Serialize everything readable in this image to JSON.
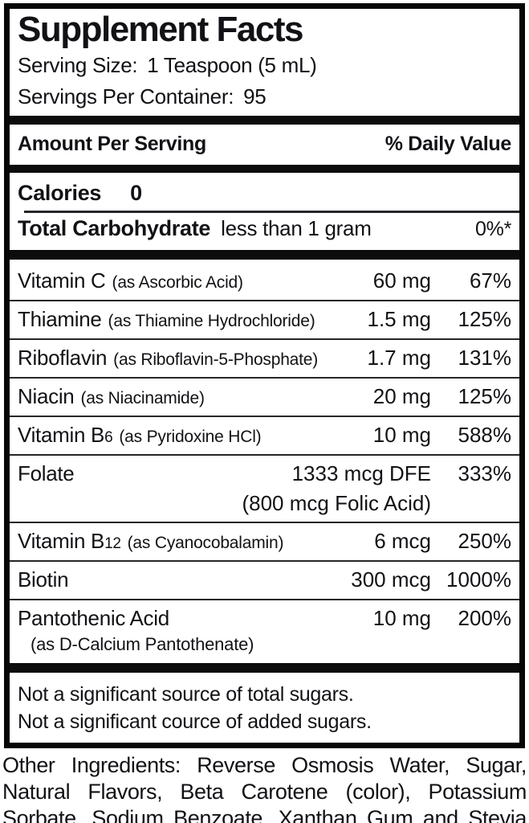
{
  "panel": {
    "title": "Supplement Facts",
    "serving_size": {
      "label": "Serving Size:",
      "value": "1 Teaspoon (5 mL)"
    },
    "servings_per_container": {
      "label": "Servings Per Container:",
      "value": "95"
    },
    "column_header": {
      "left": "Amount Per Serving",
      "right": "% Daily Value"
    },
    "calories": {
      "name": "Calories",
      "value": "0"
    },
    "total_carbohydrate": {
      "name": "Total Carbohydrate",
      "amount": "less than 1 gram",
      "daily_value": "0%*"
    },
    "nutrients": [
      {
        "name": "Vitamin C",
        "suffix": "",
        "form": "(as Ascorbic Acid)",
        "amount": "60 mg",
        "daily_value": "67%",
        "extra": "",
        "extra_style": ""
      },
      {
        "name": "Thiamine",
        "suffix": "",
        "form": "(as Thiamine Hydrochloride)",
        "amount": "1.5 mg",
        "daily_value": "125%",
        "extra": "",
        "extra_style": ""
      },
      {
        "name": "Riboflavin",
        "suffix": "",
        "form": "(as Riboflavin-5-Phosphate)",
        "amount": "1.7 mg",
        "daily_value": "131%",
        "extra": "",
        "extra_style": ""
      },
      {
        "name": "Niacin",
        "suffix": "",
        "form": "(as Niacinamide)",
        "amount": "20 mg",
        "daily_value": "125%",
        "extra": "",
        "extra_style": ""
      },
      {
        "name": "Vitamin B",
        "suffix": "6",
        "form": "(as Pyridoxine HCl)",
        "amount": "10 mg",
        "daily_value": "588%",
        "extra": "",
        "extra_style": ""
      },
      {
        "name": "Folate",
        "suffix": "",
        "form": "",
        "amount": "1333 mcg DFE",
        "daily_value": "333%",
        "extra": "(800 mcg Folic Acid)",
        "extra_style": "amount-align"
      },
      {
        "name": "Vitamin B",
        "suffix": "12",
        "form": "(as Cyanocobalamin)",
        "amount": "6 mcg",
        "daily_value": "250%",
        "extra": "",
        "extra_style": ""
      },
      {
        "name": "Biotin",
        "suffix": "",
        "form": "",
        "amount": "300 mcg",
        "daily_value": "1000%",
        "extra": "",
        "extra_style": ""
      },
      {
        "name": "Pantothenic Acid",
        "suffix": "",
        "form": "",
        "amount": "10 mg",
        "daily_value": "200%",
        "extra": "(as D-Calcium Pantothenate)",
        "extra_style": "indent"
      }
    ],
    "footnotes": [
      "Not a significant source of total sugars.",
      "Not a significant cource of added sugars."
    ]
  },
  "other_ingredients": "Other Ingredients: Reverse Osmosis Water, Sugar, Natural Flavors, Beta Carotene (color), Potassium Sorbate, Sodium Benzoate, Xanthan Gum and Stevia Leaf Extract.",
  "colors": {
    "text": "#121216",
    "rule": "#26262a",
    "bar": "#0c0c0c",
    "background": "#ffffff"
  }
}
